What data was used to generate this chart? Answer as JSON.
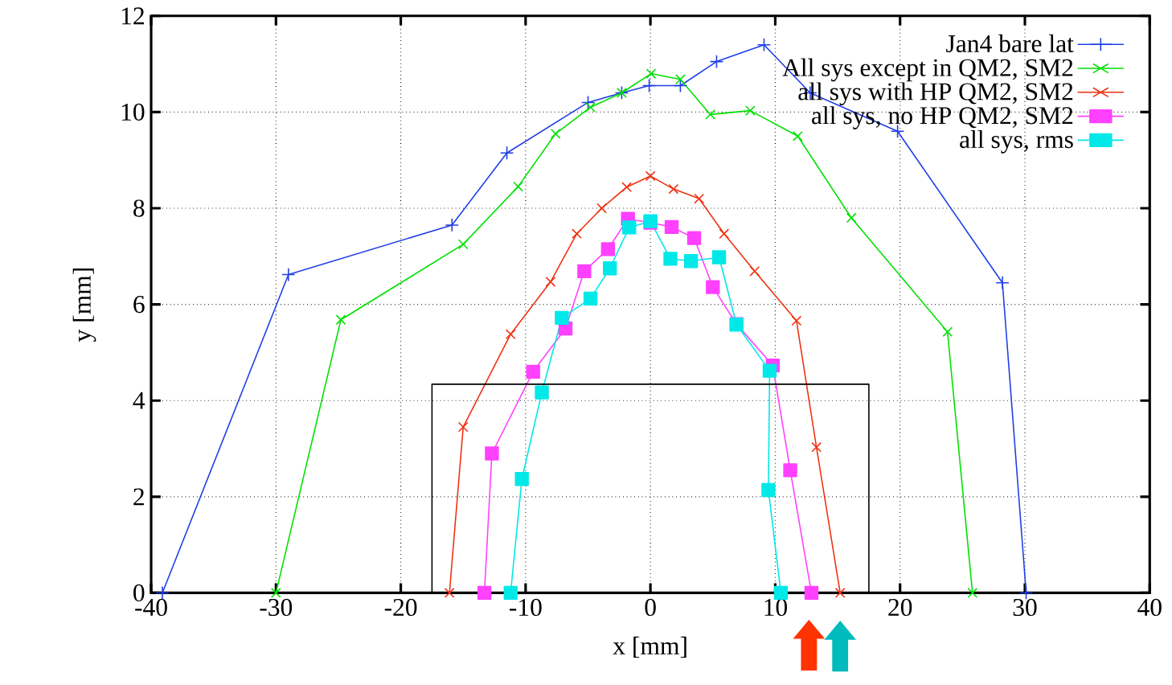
{
  "chart_data": {
    "type": "line",
    "xlabel": "x [mm]",
    "ylabel": "y [mm]",
    "xlim": [
      -40,
      40
    ],
    "ylim": [
      0,
      12
    ],
    "xticks": [
      -40,
      -30,
      -20,
      -10,
      0,
      10,
      20,
      30,
      40
    ],
    "yticks": [
      0,
      2,
      4,
      6,
      8,
      10,
      12
    ],
    "grid": true,
    "legend": "top right",
    "line_style": "solid",
    "series": [
      {
        "name": "Jan4 bare lat",
        "color": "#1f3ee6",
        "marker": "plus",
        "x": [
          -39.1,
          -29.0,
          -15.9,
          -11.5,
          -5.0,
          -2.3,
          -0.1,
          2.4,
          5.3,
          9.1,
          12.8,
          19.8,
          28.2,
          30.1
        ],
        "values": [
          0,
          6.62,
          7.65,
          9.15,
          10.2,
          10.4,
          10.55,
          10.55,
          11.05,
          11.4,
          10.4,
          9.6,
          6.45,
          0
        ]
      },
      {
        "name": "All sys except in QM2, SM2",
        "color": "#00e000",
        "marker": "cross",
        "x": [
          -30.0,
          -24.8,
          -15.0,
          -10.6,
          -7.6,
          -4.8,
          -2.3,
          0.05,
          2.4,
          4.8,
          8.0,
          11.8,
          16.1,
          23.8,
          25.8
        ],
        "values": [
          0,
          5.68,
          7.25,
          8.45,
          9.55,
          10.1,
          10.4,
          10.8,
          10.68,
          9.95,
          10.03,
          9.5,
          7.8,
          5.43,
          0
        ]
      },
      {
        "name": "all sys with HP QM2, SM2",
        "color": "#f03010",
        "marker": "cross",
        "x": [
          -16.1,
          -15.0,
          -11.2,
          -8.0,
          -5.9,
          -3.9,
          -1.9,
          0,
          1.85,
          3.9,
          5.9,
          8.35,
          11.7,
          13.3,
          15.2
        ],
        "values": [
          0,
          3.45,
          5.38,
          6.47,
          7.47,
          8.0,
          8.44,
          8.67,
          8.4,
          8.2,
          7.47,
          6.69,
          5.66,
          3.03,
          0
        ]
      },
      {
        "name": "all sys, no HP QM2, SM2",
        "color": "#ff40ff",
        "marker": "square",
        "x": [
          -13.3,
          -12.7,
          -9.4,
          -6.8,
          -5.3,
          -3.4,
          -1.8,
          0,
          1.7,
          3.5,
          5.0,
          6.9,
          9.8,
          11.2,
          12.9
        ],
        "values": [
          0,
          2.9,
          4.6,
          5.5,
          6.69,
          7.15,
          7.78,
          7.7,
          7.61,
          7.38,
          6.36,
          5.59,
          4.73,
          2.55,
          0
        ]
      },
      {
        "name": "all sys, rms",
        "color": "#00e8e8",
        "marker": "square",
        "x": [
          -11.2,
          -10.3,
          -8.7,
          -7.1,
          -4.8,
          -3.25,
          -1.7,
          0,
          1.6,
          3.25,
          5.5,
          6.9,
          9.55,
          9.45,
          10.45
        ],
        "values": [
          0,
          2.37,
          4.17,
          5.72,
          6.12,
          6.75,
          7.6,
          7.73,
          6.95,
          6.9,
          6.98,
          5.58,
          4.62,
          2.14,
          0
        ]
      },
      {
        "color": "#000000",
        "marker": "none",
        "x": [
          -17.5,
          -17.5,
          17.5,
          17.5
        ],
        "values": [
          0,
          4.34,
          4.34,
          0
        ]
      }
    ]
  }
}
